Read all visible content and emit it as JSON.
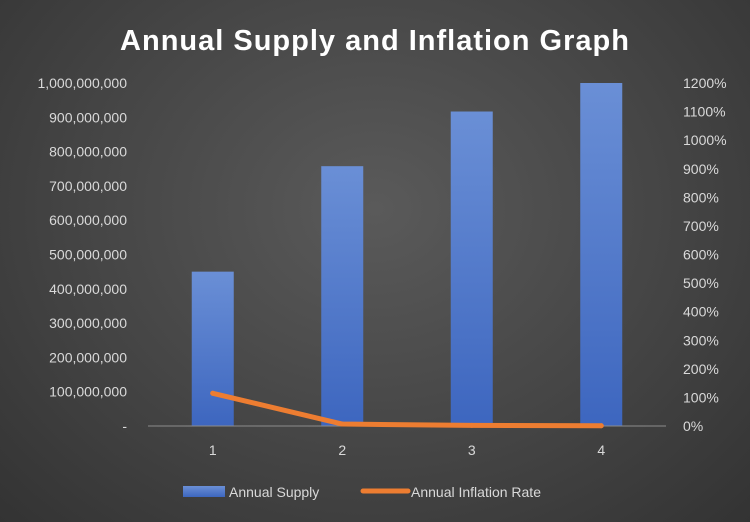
{
  "chart_data": {
    "type": "bar",
    "title": "Annual Supply and Inflation Graph",
    "categories": [
      "1",
      "2",
      "3",
      "4"
    ],
    "series": [
      {
        "name": "Annual Supply",
        "type": "bar",
        "axis": "left",
        "values": [
          450000000,
          757500000,
          916875000,
          1000000000
        ],
        "color": "#4472c4"
      },
      {
        "name": "Annual Inflation Rate",
        "type": "line",
        "axis": "right",
        "values": [
          1.145,
          0.0683,
          0.0211,
          0.0091
        ],
        "color": "#ed7d31"
      }
    ],
    "ylim_left": [
      0,
      1000000000
    ],
    "ylim_right": [
      0,
      12
    ],
    "y_ticks_left": [
      "-",
      "100,000,000",
      "200,000,000",
      "300,000,000",
      "400,000,000",
      "500,000,000",
      "600,000,000",
      "700,000,000",
      "800,000,000",
      "900,000,000",
      "1,000,000,000"
    ],
    "y_ticks_right": [
      "0%",
      "100%",
      "200%",
      "300%",
      "400%",
      "500%",
      "600%",
      "700%",
      "800%",
      "900%",
      "1000%",
      "1100%",
      "1200%"
    ],
    "grid": false,
    "legend": "bottom"
  }
}
